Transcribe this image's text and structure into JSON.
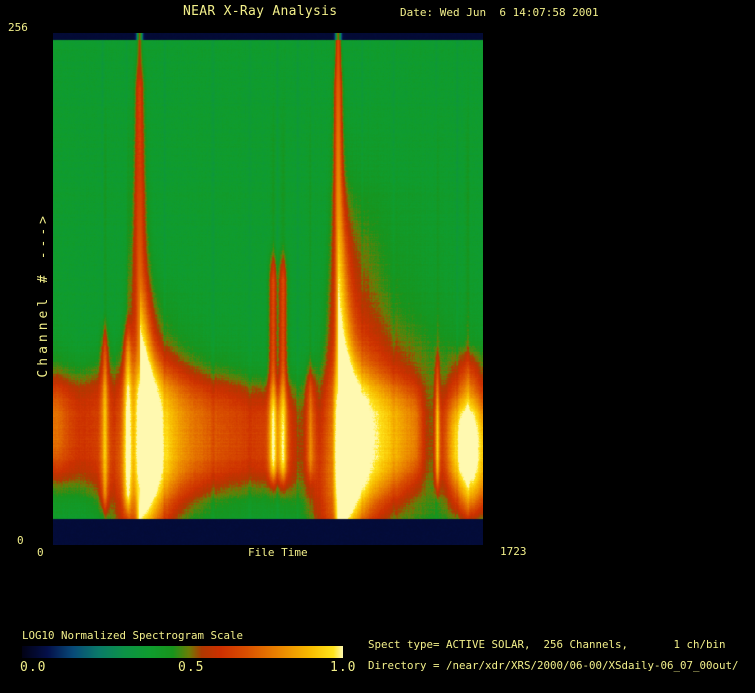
{
  "header": {
    "title": "NEAR X-Ray Analysis",
    "date": "Date: Wed Jun  6 14:07:58 2001"
  },
  "plot": {
    "y_axis": {
      "title": "Channel # --->",
      "max_label": "256",
      "min_label": "0"
    },
    "x_axis": {
      "title": "File Time",
      "min_label": "0",
      "max_label": "1723"
    }
  },
  "colorbar": {
    "title": "LOG10 Normalized Spectrogram Scale",
    "tick_labels": [
      "0.0",
      "0.5",
      "1.0"
    ]
  },
  "info": {
    "spect_line": "Spect type= ACTIVE SOLAR,  256 Channels,       1 ch/bin",
    "directory_line": "Directory = /near/xdr/XRS/2000/06-00/XSdaily-06_07_00out/"
  },
  "colors": {
    "text": "#f2ef8a",
    "background": "#000000",
    "blank_band": "#050d45"
  },
  "chart_data": {
    "type": "heatmap",
    "title": "NEAR X-Ray Analysis",
    "xlabel": "File Time",
    "ylabel": "Channel # --->",
    "x_range": [
      0,
      1723
    ],
    "y_range": [
      0,
      256
    ],
    "scale_label": "LOG10 Normalized Spectrogram Scale",
    "scale_range": [
      0.0,
      1.0
    ],
    "scale_ticks": [
      0.0,
      0.5,
      1.0
    ],
    "background_level": 0.4,
    "blank_channel_bands": [
      [
        0,
        13
      ],
      [
        252,
        256
      ]
    ],
    "colormap": [
      {
        "pos": 0.0,
        "color": "#020214"
      },
      {
        "pos": 0.08,
        "color": "#04104a"
      },
      {
        "pos": 0.16,
        "color": "#084a78"
      },
      {
        "pos": 0.24,
        "color": "#0a7a68"
      },
      {
        "pos": 0.32,
        "color": "#0c9246"
      },
      {
        "pos": 0.4,
        "color": "#0f9d2e"
      },
      {
        "pos": 0.47,
        "color": "#18941c"
      },
      {
        "pos": 0.52,
        "color": "#6b7e06"
      },
      {
        "pos": 0.56,
        "color": "#b03800"
      },
      {
        "pos": 0.62,
        "color": "#cd3000"
      },
      {
        "pos": 0.7,
        "color": "#d94f00"
      },
      {
        "pos": 0.8,
        "color": "#ea8400"
      },
      {
        "pos": 0.9,
        "color": "#f8bc00"
      },
      {
        "pos": 0.97,
        "color": "#ffe41c"
      },
      {
        "pos": 1.0,
        "color": "#fff9b0"
      }
    ],
    "enhanced_band": {
      "description": "broad high-intensity band at low channels",
      "level_profile": [
        [
          0,
          0.65
        ],
        [
          120,
          0.63
        ],
        [
          201,
          0.66
        ],
        [
          241,
          0.61
        ],
        [
          297,
          0.66
        ],
        [
          321,
          0.63
        ],
        [
          345,
          0.85
        ],
        [
          442,
          0.74
        ],
        [
          562,
          0.68
        ],
        [
          683,
          0.65
        ],
        [
          803,
          0.63
        ],
        [
          851,
          0.65
        ],
        [
          880,
          0.72
        ],
        [
          920,
          0.7
        ],
        [
          956,
          0.61
        ],
        [
          996,
          0.54
        ],
        [
          1036,
          0.6
        ],
        [
          1068,
          0.52
        ],
        [
          1117,
          0.55
        ],
        [
          1141,
          0.88
        ],
        [
          1205,
          0.78
        ],
        [
          1285,
          0.72
        ],
        [
          1385,
          0.68
        ],
        [
          1454,
          0.63
        ],
        [
          1494,
          0.44
        ],
        [
          1518,
          0.42
        ],
        [
          1538,
          0.6
        ],
        [
          1558,
          0.51
        ],
        [
          1590,
          0.63
        ],
        [
          1627,
          0.7
        ],
        [
          1667,
          0.72
        ],
        [
          1723,
          0.7
        ]
      ],
      "center_profile": [
        [
          0,
          58
        ],
        [
          345,
          55
        ],
        [
          700,
          56
        ],
        [
          1141,
          50
        ],
        [
          1450,
          56
        ],
        [
          1723,
          48
        ]
      ],
      "halfwidth_profile": [
        [
          0,
          26
        ],
        [
          345,
          38
        ],
        [
          600,
          29
        ],
        [
          900,
          26
        ],
        [
          1141,
          38
        ],
        [
          1400,
          27
        ],
        [
          1500,
          21
        ],
        [
          1723,
          27
        ]
      ]
    },
    "events": [
      {
        "file_time": 205,
        "type": "minor_flare",
        "amp": 0.22,
        "sigma": 3.0,
        "ch_top": 105,
        "ch_bot": 22
      },
      {
        "file_time": 297,
        "type": "minor_flare",
        "amp": 0.22,
        "sigma": 3.0,
        "ch_top": 105,
        "ch_bot": 22
      },
      {
        "file_time": 345,
        "type": "major_flare",
        "peak": 1.0
      },
      {
        "file_time": 880,
        "type": "minor_flare",
        "amp": 0.24,
        "sigma": 3.2,
        "ch_top": 140,
        "ch_bot": 38
      },
      {
        "file_time": 920,
        "type": "minor_flare",
        "amp": 0.24,
        "sigma": 3.2,
        "ch_top": 140,
        "ch_bot": 38
      },
      {
        "file_time": 1030,
        "type": "minor_flare",
        "amp": 0.15,
        "sigma": 3.5,
        "ch_top": 85,
        "ch_bot": 40
      },
      {
        "file_time": 1141,
        "type": "major_flare",
        "peak": 1.0
      },
      {
        "file_time": 1538,
        "type": "minor_flare",
        "amp": 0.18,
        "sigma": 1.6,
        "ch_top": 90,
        "ch_bot": 33
      },
      {
        "file_time": 1660,
        "type": "low_channel_blob",
        "amp": 0.2,
        "sigma": 11,
        "ch_top": 91,
        "ch_bot": 18
      }
    ],
    "faint_dropout_times": [
      197,
      293,
      446,
      639,
      787,
      896,
      980,
      1036,
      1237,
      1362,
      1534,
      1618
    ]
  }
}
